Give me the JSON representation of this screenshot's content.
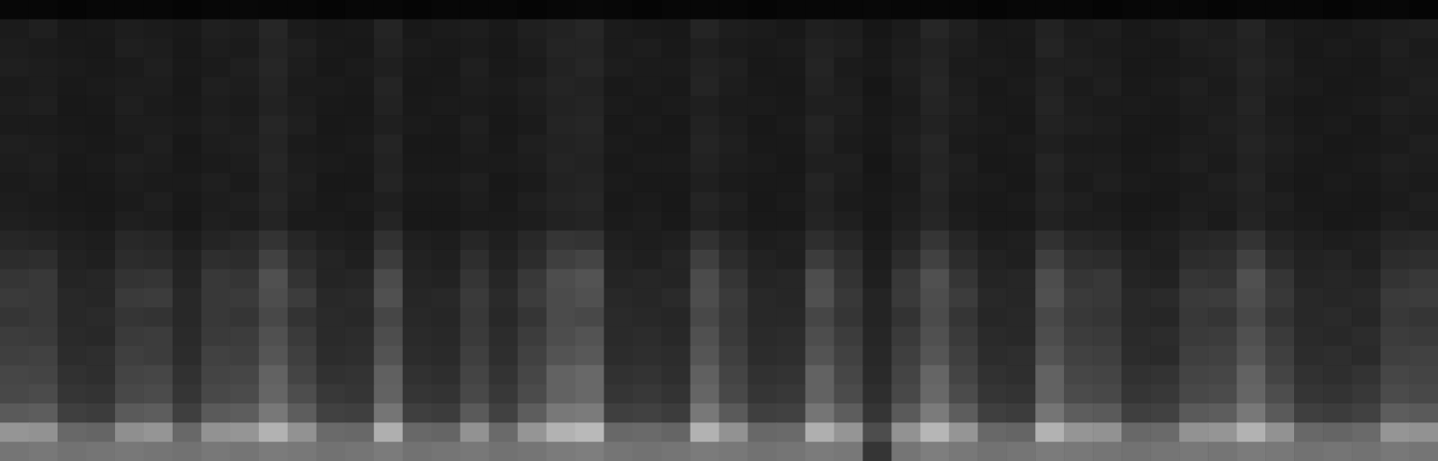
{
  "chart_data": {
    "type": "heatmap",
    "tick_labels": false,
    "zlim": [
      0,
      100
    ],
    "cells": [
      [
        6,
        6,
        5,
        6,
        6,
        6,
        5,
        6,
        7,
        6,
        6,
        5,
        6,
        6,
        5,
        6,
        6,
        6,
        5,
        6,
        7,
        6,
        5,
        6,
        6,
        6,
        5,
        6,
        6,
        6,
        7,
        6,
        6,
        6,
        5,
        6,
        6,
        6,
        5,
        6,
        6,
        6,
        5,
        6,
        6,
        6,
        5,
        6,
        6,
        5
      ],
      [
        18,
        20,
        16,
        17,
        19,
        18,
        17,
        20,
        19,
        23,
        18,
        16,
        17,
        22,
        16,
        18,
        19,
        17,
        20,
        21,
        23,
        18,
        17,
        16,
        22,
        19,
        18,
        16,
        20,
        19,
        15,
        18,
        23,
        20,
        16,
        17,
        21,
        18,
        19,
        16,
        18,
        20,
        19,
        22,
        18,
        17,
        16,
        18,
        19,
        20
      ],
      [
        19,
        18,
        17,
        16,
        20,
        19,
        16,
        19,
        18,
        22,
        20,
        17,
        16,
        21,
        18,
        17,
        18,
        16,
        19,
        22,
        22,
        18,
        19,
        17,
        20,
        18,
        17,
        18,
        21,
        20,
        16,
        19,
        21,
        19,
        17,
        16,
        22,
        19,
        18,
        17,
        16,
        19,
        20,
        21,
        19,
        16,
        18,
        17,
        20,
        18
      ],
      [
        20,
        19,
        18,
        17,
        18,
        20,
        17,
        18,
        20,
        23,
        19,
        16,
        18,
        20,
        17,
        16,
        20,
        17,
        18,
        21,
        23,
        19,
        18,
        18,
        21,
        20,
        16,
        17,
        22,
        18,
        17,
        20,
        22,
        18,
        18,
        17,
        20,
        20,
        19,
        16,
        17,
        18,
        19,
        22,
        20,
        17,
        17,
        16,
        19,
        19
      ],
      [
        18,
        19,
        17,
        18,
        19,
        19,
        16,
        20,
        19,
        22,
        18,
        18,
        17,
        22,
        16,
        17,
        19,
        18,
        20,
        22,
        21,
        17,
        18,
        17,
        22,
        19,
        17,
        16,
        21,
        19,
        15,
        19,
        23,
        19,
        16,
        18,
        21,
        18,
        20,
        17,
        18,
        20,
        18,
        21,
        19,
        18,
        16,
        17,
        18,
        20
      ],
      [
        19,
        20,
        16,
        17,
        20,
        18,
        17,
        19,
        18,
        21,
        19,
        17,
        16,
        21,
        17,
        18,
        18,
        17,
        19,
        21,
        22,
        18,
        17,
        18,
        20,
        18,
        18,
        17,
        20,
        20,
        16,
        18,
        22,
        20,
        17,
        17,
        22,
        19,
        18,
        18,
        17,
        19,
        19,
        22,
        18,
        16,
        17,
        18,
        20,
        19
      ],
      [
        18,
        18,
        17,
        16,
        19,
        19,
        18,
        20,
        19,
        23,
        20,
        16,
        17,
        20,
        18,
        17,
        20,
        16,
        18,
        22,
        23,
        17,
        18,
        16,
        21,
        19,
        16,
        18,
        22,
        19,
        17,
        19,
        21,
        19,
        18,
        16,
        21,
        20,
        19,
        17,
        16,
        18,
        20,
        21,
        19,
        17,
        18,
        16,
        19,
        18
      ],
      [
        20,
        19,
        18,
        17,
        18,
        20,
        16,
        19,
        20,
        22,
        18,
        17,
        18,
        22,
        16,
        16,
        19,
        17,
        20,
        21,
        22,
        18,
        17,
        17,
        22,
        20,
        17,
        17,
        21,
        18,
        16,
        20,
        23,
        18,
        17,
        18,
        20,
        18,
        18,
        16,
        17,
        19,
        19,
        22,
        20,
        18,
        16,
        17,
        18,
        20
      ],
      [
        19,
        20,
        17,
        18,
        20,
        19,
        17,
        18,
        19,
        23,
        19,
        18,
        17,
        21,
        17,
        17,
        18,
        18,
        19,
        22,
        21,
        17,
        18,
        18,
        21,
        19,
        18,
        16,
        20,
        20,
        15,
        19,
        22,
        20,
        16,
        17,
        22,
        19,
        19,
        17,
        18,
        20,
        18,
        21,
        19,
        17,
        17,
        18,
        20,
        19
      ],
      [
        18,
        19,
        16,
        17,
        19,
        18,
        18,
        20,
        18,
        22,
        20,
        16,
        16,
        22,
        18,
        18,
        20,
        16,
        18,
        21,
        22,
        18,
        17,
        17,
        20,
        18,
        17,
        17,
        22,
        19,
        16,
        18,
        23,
        19,
        18,
        16,
        21,
        18,
        20,
        18,
        17,
        18,
        20,
        22,
        18,
        16,
        18,
        17,
        19,
        18
      ],
      [
        19,
        18,
        17,
        16,
        18,
        20,
        17,
        19,
        20,
        23,
        19,
        17,
        18,
        20,
        17,
        17,
        19,
        17,
        20,
        22,
        23,
        17,
        18,
        16,
        22,
        20,
        16,
        18,
        21,
        18,
        17,
        19,
        22,
        18,
        17,
        18,
        22,
        20,
        18,
        16,
        16,
        19,
        19,
        21,
        20,
        17,
        17,
        16,
        18,
        20
      ],
      [
        20,
        19,
        18,
        17,
        20,
        19,
        16,
        20,
        19,
        22,
        18,
        18,
        17,
        22,
        16,
        16,
        18,
        18,
        19,
        21,
        22,
        18,
        19,
        17,
        21,
        19,
        17,
        17,
        22,
        20,
        16,
        20,
        23,
        19,
        17,
        17,
        21,
        19,
        19,
        17,
        18,
        20,
        18,
        22,
        19,
        18,
        16,
        17,
        20,
        19
      ],
      [
        23,
        22,
        20,
        19,
        24,
        23,
        19,
        22,
        24,
        29,
        23,
        20,
        19,
        28,
        20,
        19,
        23,
        20,
        24,
        30,
        29,
        20,
        19,
        20,
        28,
        23,
        19,
        20,
        27,
        23,
        18,
        22,
        30,
        23,
        19,
        20,
        28,
        23,
        22,
        19,
        20,
        23,
        24,
        29,
        22,
        20,
        19,
        20,
        23,
        24
      ],
      [
        26,
        27,
        21,
        20,
        26,
        25,
        21,
        27,
        26,
        35,
        26,
        22,
        20,
        33,
        21,
        20,
        27,
        21,
        26,
        34,
        36,
        21,
        20,
        22,
        34,
        26,
        21,
        20,
        33,
        27,
        19,
        26,
        35,
        26,
        21,
        20,
        34,
        27,
        26,
        21,
        20,
        26,
        27,
        35,
        25,
        21,
        22,
        20,
        26,
        27
      ],
      [
        30,
        31,
        22,
        23,
        29,
        30,
        22,
        31,
        30,
        41,
        29,
        22,
        23,
        39,
        22,
        21,
        30,
        23,
        31,
        40,
        42,
        22,
        23,
        22,
        39,
        30,
        22,
        23,
        40,
        29,
        20,
        31,
        41,
        30,
        22,
        23,
        40,
        30,
        31,
        22,
        21,
        30,
        29,
        41,
        30,
        22,
        23,
        22,
        29,
        31
      ],
      [
        32,
        31,
        24,
        23,
        32,
        33,
        24,
        31,
        32,
        40,
        33,
        24,
        25,
        41,
        23,
        24,
        32,
        25,
        33,
        39,
        41,
        24,
        23,
        25,
        40,
        32,
        24,
        23,
        41,
        31,
        22,
        32,
        40,
        33,
        24,
        23,
        41,
        32,
        31,
        24,
        25,
        32,
        33,
        40,
        31,
        24,
        23,
        24,
        32,
        33
      ],
      [
        30,
        31,
        24,
        25,
        30,
        29,
        24,
        31,
        30,
        38,
        29,
        25,
        24,
        37,
        24,
        23,
        31,
        24,
        30,
        39,
        38,
        25,
        24,
        23,
        38,
        31,
        24,
        24,
        37,
        30,
        22,
        29,
        39,
        30,
        23,
        24,
        38,
        31,
        30,
        24,
        23,
        31,
        30,
        38,
        29,
        24,
        25,
        23,
        31,
        30
      ],
      [
        33,
        32,
        25,
        24,
        32,
        33,
        25,
        32,
        33,
        41,
        32,
        25,
        26,
        40,
        25,
        24,
        32,
        26,
        33,
        40,
        42,
        25,
        26,
        24,
        41,
        32,
        25,
        26,
        40,
        33,
        23,
        32,
        41,
        32,
        25,
        24,
        40,
        33,
        32,
        25,
        26,
        32,
        33,
        41,
        32,
        25,
        24,
        26,
        33,
        32
      ],
      [
        34,
        35,
        26,
        27,
        34,
        33,
        26,
        35,
        34,
        43,
        34,
        26,
        27,
        42,
        26,
        25,
        34,
        27,
        35,
        42,
        44,
        26,
        27,
        26,
        43,
        34,
        26,
        27,
        42,
        35,
        24,
        34,
        43,
        34,
        26,
        27,
        42,
        35,
        34,
        26,
        25,
        34,
        35,
        43,
        34,
        26,
        27,
        25,
        34,
        35
      ],
      [
        37,
        36,
        28,
        27,
        36,
        37,
        28,
        36,
        37,
        48,
        36,
        28,
        29,
        47,
        28,
        27,
        36,
        29,
        37,
        48,
        50,
        28,
        29,
        27,
        47,
        36,
        28,
        29,
        48,
        37,
        25,
        36,
        49,
        36,
        28,
        27,
        48,
        37,
        36,
        28,
        29,
        36,
        37,
        48,
        36,
        28,
        27,
        29,
        37,
        36
      ],
      [
        38,
        39,
        30,
        29,
        38,
        39,
        30,
        38,
        39,
        49,
        40,
        31,
        30,
        48,
        30,
        29,
        38,
        31,
        39,
        48,
        50,
        30,
        31,
        29,
        49,
        38,
        30,
        31,
        48,
        39,
        27,
        38,
        50,
        39,
        30,
        29,
        48,
        39,
        38,
        30,
        31,
        38,
        39,
        49,
        40,
        30,
        29,
        31,
        39,
        38
      ],
      [
        45,
        46,
        34,
        33,
        45,
        46,
        34,
        45,
        46,
        56,
        46,
        35,
        34,
        55,
        34,
        33,
        45,
        35,
        46,
        56,
        57,
        34,
        35,
        33,
        56,
        45,
        34,
        35,
        55,
        46,
        30,
        45,
        57,
        46,
        34,
        33,
        55,
        46,
        45,
        34,
        35,
        45,
        46,
        56,
        45,
        34,
        33,
        35,
        46,
        45
      ],
      [
        66,
        65,
        50,
        49,
        64,
        66,
        50,
        65,
        66,
        76,
        65,
        51,
        50,
        75,
        50,
        49,
        65,
        51,
        66,
        76,
        78,
        50,
        51,
        49,
        76,
        65,
        50,
        51,
        75,
        66,
        40,
        65,
        77,
        66,
        50,
        49,
        76,
        66,
        65,
        50,
        51,
        65,
        66,
        76,
        65,
        50,
        49,
        51,
        66,
        65
      ],
      [
        55,
        56,
        54,
        55,
        56,
        55,
        54,
        56,
        55,
        57,
        56,
        54,
        55,
        57,
        54,
        55,
        56,
        54,
        55,
        57,
        58,
        55,
        54,
        55,
        57,
        56,
        54,
        55,
        57,
        56,
        30,
        55,
        58,
        56,
        54,
        55,
        57,
        56,
        55,
        54,
        55,
        56,
        55,
        57,
        56,
        54,
        55,
        54,
        56,
        55
      ]
    ]
  }
}
